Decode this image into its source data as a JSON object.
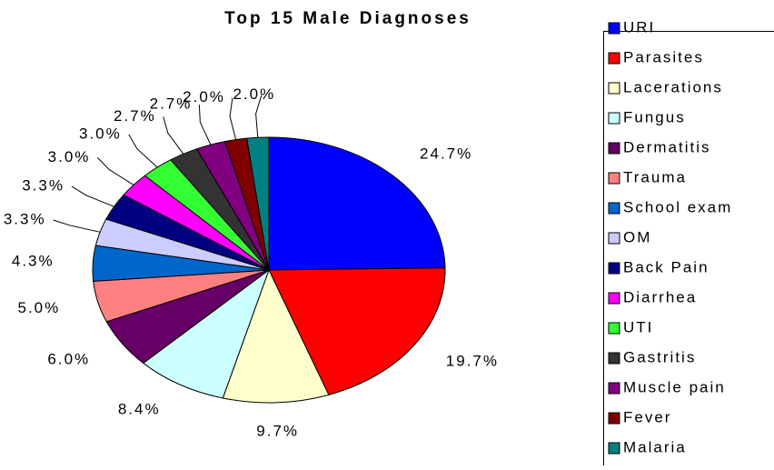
{
  "chart_data": {
    "type": "pie",
    "title": "Top 15 Male Diagnoses",
    "categories": [
      "URI",
      "Parasites",
      "Lacerations",
      "Fungus",
      "Dermatitis",
      "Trauma",
      "School exam",
      "OM",
      "Back Pain",
      "Diarrhea",
      "UTI",
      "Gastritis",
      "Muscle pain",
      "Fever",
      "Malaria"
    ],
    "values": [
      24.7,
      19.7,
      9.7,
      8.4,
      6.0,
      5.0,
      4.3,
      3.3,
      3.3,
      3.0,
      3.0,
      2.7,
      2.7,
      2.0,
      2.0
    ],
    "value_labels": [
      "24.7%",
      "19.7%",
      "9.7%",
      "8.4%",
      "6.0%",
      "5.0%",
      "4.3%",
      "3.3%",
      "3.3%",
      "3.0%",
      "3.0%",
      "2.7%",
      "2.7%",
      "2.0%",
      "2.0%"
    ],
    "colors": [
      "#0000ff",
      "#ff0000",
      "#ffffcc",
      "#ccffff",
      "#660066",
      "#ff8080",
      "#0066cc",
      "#ccccff",
      "#000080",
      "#ff00ff",
      "#33ff33",
      "#333333",
      "#800080",
      "#800000",
      "#008080"
    ],
    "legend": "right"
  }
}
